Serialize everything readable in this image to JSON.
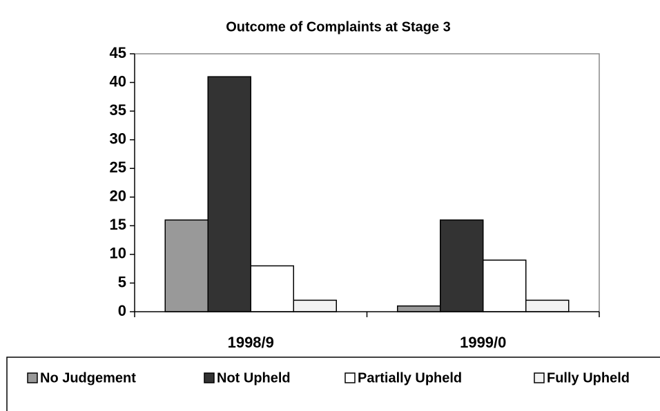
{
  "chart_data": {
    "type": "bar",
    "title": "Outcome of Complaints at Stage 3",
    "categories": [
      "1998/9",
      "1999/0"
    ],
    "series": [
      {
        "name": "No Judgement",
        "color": "#999999",
        "values": [
          16,
          1
        ]
      },
      {
        "name": "Not Upheld",
        "color": "#333333",
        "values": [
          41,
          16
        ]
      },
      {
        "name": "Partially Upheld",
        "color": "#ffffff",
        "values": [
          8,
          9
        ]
      },
      {
        "name": "Fully Upheld",
        "color": "#f2f2f2",
        "values": [
          2,
          2
        ]
      }
    ],
    "ylim": [
      0,
      45
    ],
    "yticks": [
      0,
      5,
      10,
      15,
      20,
      25,
      30,
      35,
      40,
      45
    ],
    "legend": "bottom"
  }
}
